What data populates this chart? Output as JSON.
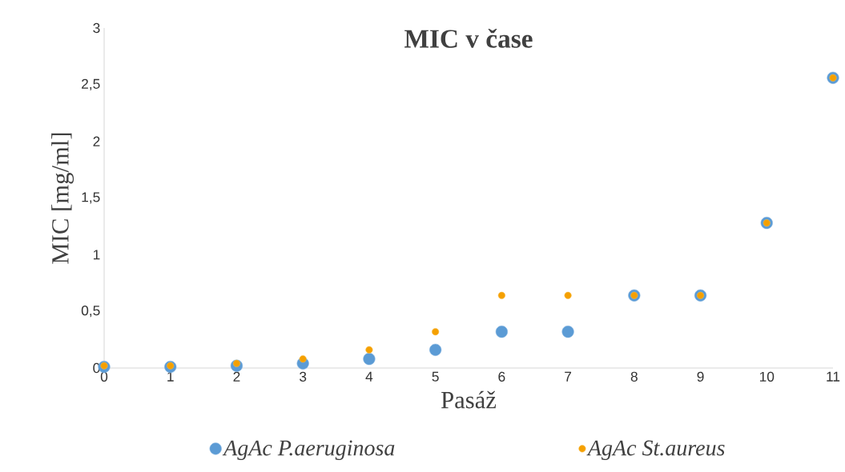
{
  "chart_data": {
    "type": "scatter",
    "title": "MIC v čase",
    "xlabel": "Pasáž",
    "ylabel": "MIC [mg/ml]",
    "x": [
      0,
      1,
      2,
      3,
      4,
      5,
      6,
      7,
      8,
      9,
      10,
      11
    ],
    "series": [
      {
        "name": "AgAc P.aeruginosa",
        "color": "#5b9bd5",
        "values": [
          0.01,
          0.01,
          0.02,
          0.04,
          0.08,
          0.16,
          0.32,
          0.32,
          0.64,
          0.64,
          1.28,
          2.56
        ]
      },
      {
        "name": "AgAc St.aureus",
        "color": "#f5a000",
        "values": [
          0.02,
          0.02,
          0.04,
          0.08,
          0.16,
          0.32,
          0.64,
          0.64,
          0.64,
          0.64,
          1.28,
          2.56
        ]
      }
    ],
    "xlim": [
      0,
      11
    ],
    "ylim": [
      0,
      3
    ],
    "xticks": [
      0,
      1,
      2,
      3,
      4,
      5,
      6,
      7,
      8,
      9,
      10,
      11
    ],
    "yticks": [
      0,
      {
        "value": 0.5,
        "label": "0,5"
      },
      1,
      {
        "value": 1.5,
        "label": "1,5"
      },
      2,
      {
        "value": 2.5,
        "label": "2,5"
      },
      3
    ],
    "marker": "circle",
    "legend": "bottom",
    "grid": false
  }
}
